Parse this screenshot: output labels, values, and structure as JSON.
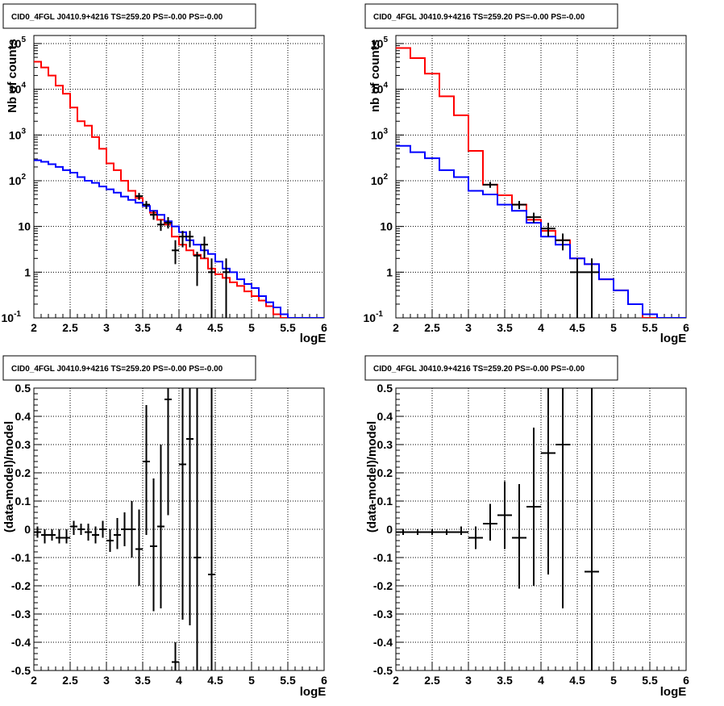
{
  "title_text": "CID0_4FGL J0410.9+4216 TS=259.20 PS=-0.00 PS=-0.00",
  "colors": {
    "data": "#000000",
    "total_model": "#ff0000",
    "component": "#0000ff",
    "grid": "#000000"
  },
  "chart_data": [
    {
      "type": "line",
      "panel": "top-left",
      "title": "CID0_4FGL J0410.9+4216 TS=259.20 PS=-0.00 PS=-0.00",
      "xlabel": "logE",
      "ylabel": "Nb of counts",
      "xlim": [
        2,
        6
      ],
      "ylim": [
        0.1,
        150000
      ],
      "yscale": "log",
      "grid": true,
      "x_ticks": [
        "2",
        "2.5",
        "3",
        "3.5",
        "4",
        "4.5",
        "5",
        "5.5",
        "6"
      ],
      "y_ticks": [
        "10^-1",
        "1",
        "10",
        "10^2",
        "10^3",
        "10^4",
        "10^5"
      ],
      "bin_edges": [
        2.0,
        2.1,
        2.2,
        2.3,
        2.4,
        2.5,
        2.6,
        2.7,
        2.8,
        2.9,
        3.0,
        3.1,
        3.2,
        3.3,
        3.4,
        3.5,
        3.6,
        3.7,
        3.8,
        3.9,
        4.0,
        4.1,
        4.2,
        4.3,
        4.4,
        4.5,
        4.6,
        4.7,
        4.8,
        4.9,
        5.0,
        5.1,
        5.2,
        5.3,
        5.4,
        5.5,
        5.6,
        5.7,
        5.8,
        5.9,
        6.0
      ],
      "series": [
        {
          "style": "step",
          "color": "#ff0000",
          "values": [
            40000,
            30000,
            20000,
            12000,
            8000,
            4000,
            2000,
            1600,
            900,
            500,
            240,
            170,
            100,
            60,
            42,
            28,
            20,
            14,
            11,
            6,
            4,
            3,
            2.4,
            2.0,
            1.2,
            0.9,
            0.75,
            0.6,
            0.5,
            0.38,
            0.3,
            0.24,
            0.18,
            0.12,
            0.1,
            0.1,
            0.1,
            0.1,
            0.1,
            0.1
          ]
        },
        {
          "style": "step",
          "color": "#0000ff",
          "values": [
            280,
            260,
            230,
            200,
            170,
            150,
            120,
            100,
            90,
            75,
            65,
            55,
            45,
            38,
            33,
            28,
            22,
            18,
            13,
            10,
            7.5,
            5,
            4,
            3,
            2.5,
            1.7,
            1.2,
            1.0,
            0.7,
            0.55,
            0.45,
            0.3,
            0.22,
            0.17,
            0.12,
            0.1,
            0.1,
            0.1,
            0.1,
            0.1
          ]
        },
        {
          "style": "errorbar",
          "color": "#000000",
          "x": [
            3.45,
            3.55,
            3.65,
            3.75,
            3.85,
            3.95,
            4.05,
            4.15,
            4.25,
            4.35,
            4.45,
            4.65
          ],
          "xerr": 0.05,
          "y": [
            46,
            30,
            18,
            11,
            12,
            3,
            6,
            6,
            2.3,
            4,
            1,
            1
          ],
          "ylo": [
            38,
            24,
            14,
            8,
            9,
            1.5,
            3.5,
            3.5,
            0.5,
            2,
            0.1,
            0.1
          ],
          "yhi": [
            54,
            36,
            22,
            14,
            16,
            5,
            8,
            8,
            2.8,
            6,
            2,
            2
          ]
        }
      ]
    },
    {
      "type": "line",
      "panel": "top-right",
      "title": "CID0_4FGL J0410.9+4216 TS=259.20 PS=-0.00 PS=-0.00",
      "xlabel": "logE",
      "ylabel": "nb of counts",
      "xlim": [
        2,
        6
      ],
      "ylim": [
        0.1,
        150000
      ],
      "yscale": "log",
      "grid": true,
      "x_ticks": [
        "2",
        "2.5",
        "3",
        "3.5",
        "4",
        "4.5",
        "5",
        "5.5",
        "6"
      ],
      "y_ticks": [
        "10^-1",
        "1",
        "10",
        "10^2",
        "10^3",
        "10^4",
        "10^5"
      ],
      "bin_edges": [
        2.0,
        2.2,
        2.4,
        2.6,
        2.8,
        3.0,
        3.2,
        3.4,
        3.6,
        3.8,
        4.0,
        4.2,
        4.4,
        4.6,
        4.8,
        5.0,
        5.2,
        5.4,
        5.6,
        5.8,
        6.0
      ],
      "series": [
        {
          "style": "step",
          "color": "#ff0000",
          "values": [
            80000,
            48000,
            22000,
            7000,
            2700,
            450,
            82,
            48,
            30,
            14,
            8,
            5,
            2,
            1.5,
            0.7,
            0.4,
            0.2,
            0.1,
            0.1,
            0.1
          ]
        },
        {
          "style": "step",
          "color": "#0000ff",
          "values": [
            580,
            420,
            310,
            170,
            120,
            60,
            50,
            30,
            22,
            12,
            6,
            4,
            2,
            1.5,
            0.7,
            0.4,
            0.2,
            0.12,
            0.1,
            0.1
          ]
        },
        {
          "style": "errorbar",
          "color": "#000000",
          "x": [
            3.3,
            3.7,
            3.9,
            4.1,
            4.3,
            4.5,
            4.7
          ],
          "xerr": 0.1,
          "y": [
            82,
            30,
            16,
            9,
            5,
            1,
            1
          ],
          "ylo": [
            70,
            24,
            12,
            6,
            3,
            0.1,
            0.1
          ],
          "yhi": [
            94,
            36,
            20,
            12,
            7,
            2,
            2
          ]
        }
      ]
    },
    {
      "type": "scatter",
      "panel": "bottom-left",
      "title": "CID0_4FGL J0410.9+4216 TS=259.20 PS=-0.00 PS=-0.00",
      "xlabel": "logE",
      "ylabel": "(data-model)/model",
      "xlim": [
        2,
        6
      ],
      "ylim": [
        -0.5,
        0.5
      ],
      "yscale": "linear",
      "grid": true,
      "x_ticks": [
        "2",
        "2.5",
        "3",
        "3.5",
        "4",
        "4.5",
        "5",
        "5.5",
        "6"
      ],
      "y_ticks": [
        "-0.5",
        "-0.4",
        "-0.3",
        "-0.2",
        "-0.1",
        "0",
        "0.1",
        "0.2",
        "0.3",
        "0.4",
        "0.5"
      ],
      "series": [
        {
          "style": "errorbar",
          "color": "#000000",
          "x": [
            2.05,
            2.15,
            2.25,
            2.35,
            2.45,
            2.55,
            2.65,
            2.75,
            2.85,
            2.95,
            3.05,
            3.15,
            3.25,
            3.35,
            3.45,
            3.55,
            3.65,
            3.75,
            3.85,
            3.95,
            4.05,
            4.15,
            4.25,
            4.45
          ],
          "xerr": 0.05,
          "y": [
            -0.01,
            -0.02,
            -0.02,
            -0.03,
            -0.03,
            0.01,
            0.0,
            -0.01,
            -0.02,
            0.0,
            -0.04,
            -0.02,
            0.0,
            0.0,
            -0.07,
            0.24,
            -0.06,
            0.01,
            0.46,
            -0.47,
            0.23,
            0.32,
            -0.1,
            -0.16
          ],
          "ylo": [
            -0.03,
            -0.05,
            -0.04,
            -0.05,
            -0.05,
            -0.02,
            -0.02,
            -0.04,
            -0.05,
            -0.03,
            -0.08,
            -0.07,
            -0.06,
            -0.1,
            -0.2,
            -0.02,
            -0.29,
            -0.28,
            0.05,
            -0.5,
            -0.32,
            -0.34,
            -0.5,
            -0.5
          ],
          "yhi": [
            0.01,
            0.0,
            0.0,
            0.0,
            0.0,
            0.03,
            0.02,
            0.02,
            0.01,
            0.03,
            0.0,
            0.04,
            0.06,
            0.1,
            0.07,
            0.44,
            0.18,
            0.3,
            0.5,
            -0.4,
            0.5,
            0.5,
            0.5,
            0.5
          ]
        }
      ]
    },
    {
      "type": "scatter",
      "panel": "bottom-right",
      "title": "CID0_4FGL J0410.9+4216 TS=259.20 PS=-0.00 PS=-0.00",
      "xlabel": "logE",
      "ylabel": "(data-model)/model",
      "xlim": [
        2,
        6
      ],
      "ylim": [
        -0.5,
        0.5
      ],
      "yscale": "linear",
      "grid": true,
      "x_ticks": [
        "2",
        "2.5",
        "3",
        "3.5",
        "4",
        "4.5",
        "5",
        "5.5",
        "6"
      ],
      "y_ticks": [
        "-0.5",
        "-0.4",
        "-0.3",
        "-0.2",
        "-0.1",
        "0",
        "0.1",
        "0.2",
        "0.3",
        "0.4",
        "0.5"
      ],
      "series": [
        {
          "style": "errorbar",
          "color": "#000000",
          "x": [
            2.1,
            2.3,
            2.5,
            2.7,
            2.9,
            3.1,
            3.3,
            3.5,
            3.7,
            3.9,
            4.1,
            4.3,
            4.7
          ],
          "xerr": 0.1,
          "y": [
            -0.01,
            -0.01,
            -0.01,
            -0.01,
            -0.01,
            -0.03,
            0.02,
            0.05,
            -0.03,
            0.08,
            0.27,
            0.3,
            -0.15
          ],
          "ylo": [
            -0.02,
            -0.02,
            -0.02,
            -0.02,
            -0.02,
            -0.07,
            -0.04,
            -0.07,
            -0.21,
            -0.2,
            -0.16,
            -0.28,
            -0.5
          ],
          "yhi": [
            0.0,
            0.0,
            0.0,
            0.0,
            0.01,
            0.01,
            0.09,
            0.17,
            0.16,
            0.36,
            0.5,
            0.5,
            0.5
          ]
        }
      ]
    }
  ]
}
